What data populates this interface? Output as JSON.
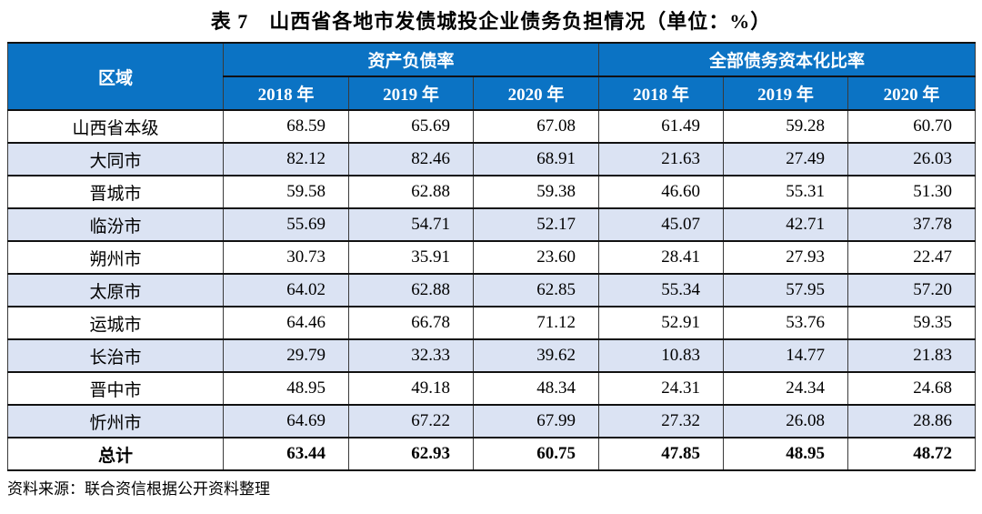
{
  "title": "表 7　山西省各地市发债城投企业债务负担情况（单位：%）",
  "colors": {
    "header_bg": "#0b73c4",
    "header_text": "#ffffff",
    "alt_row_bg": "#dbe3f3",
    "border": "#111111"
  },
  "table": {
    "region_header": "区域",
    "groups": [
      {
        "label": "资产负债率",
        "years": [
          "2018 年",
          "2019 年",
          "2020 年"
        ]
      },
      {
        "label": "全部债务资本化比率",
        "years": [
          "2018 年",
          "2019 年",
          "2020 年"
        ]
      }
    ],
    "rows": [
      {
        "region": "山西省本级",
        "values": [
          "68.59",
          "65.69",
          "67.08",
          "61.49",
          "59.28",
          "60.70"
        ],
        "bold": false
      },
      {
        "region": "大同市",
        "values": [
          "82.12",
          "82.46",
          "68.91",
          "21.63",
          "27.49",
          "26.03"
        ],
        "bold": false
      },
      {
        "region": "晋城市",
        "values": [
          "59.58",
          "62.88",
          "59.38",
          "46.60",
          "55.31",
          "51.30"
        ],
        "bold": false
      },
      {
        "region": "临汾市",
        "values": [
          "55.69",
          "54.71",
          "52.17",
          "45.07",
          "42.71",
          "37.78"
        ],
        "bold": false
      },
      {
        "region": "朔州市",
        "values": [
          "30.73",
          "35.91",
          "23.60",
          "28.41",
          "27.93",
          "22.47"
        ],
        "bold": false
      },
      {
        "region": "太原市",
        "values": [
          "64.02",
          "62.88",
          "62.85",
          "55.34",
          "57.95",
          "57.20"
        ],
        "bold": false
      },
      {
        "region": "运城市",
        "values": [
          "64.46",
          "66.78",
          "71.12",
          "52.91",
          "53.76",
          "59.35"
        ],
        "bold": false
      },
      {
        "region": "长治市",
        "values": [
          "29.79",
          "32.33",
          "39.62",
          "10.83",
          "14.77",
          "21.83"
        ],
        "bold": false
      },
      {
        "region": "晋中市",
        "values": [
          "48.95",
          "49.18",
          "48.34",
          "24.31",
          "24.34",
          "24.68"
        ],
        "bold": false
      },
      {
        "region": "忻州市",
        "values": [
          "64.69",
          "67.22",
          "67.99",
          "27.32",
          "26.08",
          "28.86"
        ],
        "bold": false
      },
      {
        "region": "总计",
        "values": [
          "63.44",
          "62.93",
          "60.75",
          "47.85",
          "48.95",
          "48.72"
        ],
        "bold": true
      }
    ]
  },
  "source_note": "资料来源：联合资信根据公开资料整理"
}
